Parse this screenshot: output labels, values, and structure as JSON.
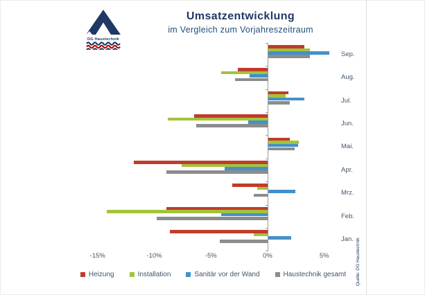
{
  "logo": {
    "name": "DG Haustechnik"
  },
  "header": {
    "title": "Umsatzentwicklung",
    "subtitle": "im Vergleich zum Vorjahreszeitraum"
  },
  "source_label": "Quelle: DG Haustechnik",
  "colors": {
    "heizung_red": "#BF3C2A",
    "installation_green": "#A2C43C",
    "sanitaer_blue": "#4590C8",
    "gesamt_gray": "#8C8C8C",
    "title_navy": "#1F3864",
    "axis_text": "#44546A",
    "logo_navy": "#1F3864",
    "logo_red": "#C00000"
  },
  "chart_data": {
    "type": "bar",
    "orientation": "horizontal",
    "title": "Umsatzentwicklung",
    "subtitle": "im Vergleich zum Vorjahreszeitraum",
    "value_unit": "percent",
    "grid": false,
    "legend_position": "bottom",
    "categories": [
      "Sep.",
      "Aug.",
      "Jul.",
      "Jun.",
      "Mai.",
      "Apr.",
      "Mrz.",
      "Feb.",
      "Jan."
    ],
    "series": [
      {
        "name": "Heizung",
        "color": "#BF3C2A",
        "values": [
          3.2,
          -2.6,
          1.8,
          -6.5,
          1.9,
          -11.8,
          -3.1,
          -8.9,
          -8.6
        ]
      },
      {
        "name": "Installation",
        "color": "#A2C43C",
        "values": [
          3.7,
          -4.1,
          1.5,
          -8.8,
          2.7,
          -7.6,
          -0.9,
          -14.2,
          -1.2
        ]
      },
      {
        "name": "Sanitär vor der Wand",
        "color": "#4590C8",
        "values": [
          5.4,
          -1.6,
          3.2,
          -1.7,
          2.6,
          -3.8,
          2.4,
          -4.1,
          2.0
        ]
      },
      {
        "name": "Haustechnik gesamt",
        "color": "#8C8C8C",
        "values": [
          3.7,
          -2.9,
          1.9,
          -6.3,
          2.3,
          -8.9,
          -1.2,
          -9.8,
          -4.2
        ]
      }
    ],
    "x_ticks": [
      {
        "label": "-15%",
        "value": -15
      },
      {
        "label": "-10%",
        "value": -10
      },
      {
        "label": "-5%",
        "value": -5
      },
      {
        "label": "0%",
        "value": 0
      },
      {
        "label": "5%",
        "value": 5
      }
    ],
    "xlim": [
      -16,
      7
    ]
  }
}
